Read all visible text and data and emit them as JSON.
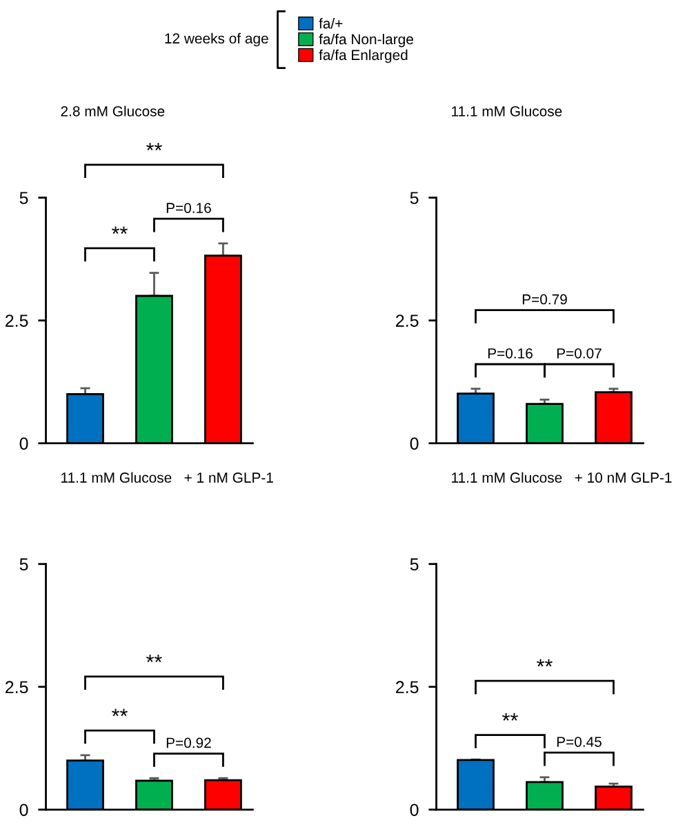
{
  "chart_data": [
    {
      "type": "bar",
      "title": "2.8 mM Glucose",
      "legend_title": "12 weeks of age",
      "legend": "top",
      "categories": [
        null
      ],
      "ylim": [
        0,
        5
      ],
      "yticks": [
        0,
        2.5,
        5
      ],
      "tick_labels": "y",
      "annotations": [
        "**",
        "P=0.16",
        "**"
      ],
      "series": [
        {
          "name": "fa/+",
          "color": "#0070c0",
          "values": [
            1.0
          ],
          "errors": [
            [
              1.0,
              1.12
            ]
          ]
        },
        {
          "name": "fa/fa Non-large",
          "color": "#00b050",
          "values": [
            3.0
          ],
          "errors": [
            [
              3.0,
              3.47
            ]
          ]
        },
        {
          "name": "fa/fa Enlarged",
          "color": "#ff0000",
          "values": [
            3.82
          ],
          "errors": [
            [
              3.82,
              4.07
            ]
          ]
        }
      ]
    },
    {
      "type": "bar",
      "title": "11.1 mM Glucose",
      "categories": [
        null
      ],
      "ylim": [
        0,
        5
      ],
      "yticks": [
        0,
        2.5,
        5
      ],
      "tick_labels": "y",
      "annotations": [
        "P=0.16",
        "P=0.07",
        "P=0.79"
      ],
      "series": [
        {
          "color": "#0070c0",
          "values": [
            1.01
          ],
          "errors": [
            [
              1.01,
              1.11
            ]
          ]
        },
        {
          "color": "#00b050",
          "values": [
            0.8
          ],
          "errors": [
            [
              0.8,
              0.89
            ]
          ]
        },
        {
          "color": "#ff0000",
          "values": [
            1.04
          ],
          "errors": [
            [
              1.04,
              1.11
            ]
          ]
        }
      ]
    },
    {
      "type": "bar",
      "title": "11.1 mM Glucose   + 1 nM GLP-1",
      "categories": [
        null
      ],
      "ylim": [
        0,
        5
      ],
      "yticks": [
        0,
        2.5,
        5
      ],
      "tick_labels": "y",
      "annotations": [
        "**",
        "P=0.92",
        "**"
      ],
      "series": [
        {
          "color": "#0070c0",
          "values": [
            1.0
          ],
          "errors": [
            [
              1.0,
              1.11
            ]
          ]
        },
        {
          "color": "#00b050",
          "values": [
            0.59
          ],
          "errors": [
            [
              0.59,
              0.64
            ]
          ]
        },
        {
          "color": "#ff0000",
          "values": [
            0.6
          ],
          "errors": [
            [
              0.6,
              0.64
            ]
          ]
        }
      ]
    },
    {
      "type": "bar",
      "title": "11.1 mM Glucose   + 10 nM GLP-1",
      "categories": [
        null
      ],
      "ylim": [
        0,
        5
      ],
      "yticks": [
        0,
        2.5,
        5
      ],
      "tick_labels": "y",
      "annotations": [
        "**",
        "P=0.45",
        "**"
      ],
      "series": [
        {
          "color": "#0070c0",
          "values": [
            1.01
          ],
          "errors": [
            [
              1.01,
              1.02
            ]
          ]
        },
        {
          "color": "#00b050",
          "values": [
            0.56
          ],
          "errors": [
            [
              0.56,
              0.66
            ]
          ]
        },
        {
          "color": "#ff0000",
          "values": [
            0.47
          ],
          "errors": [
            [
              0.47,
              0.53
            ]
          ]
        }
      ]
    }
  ]
}
